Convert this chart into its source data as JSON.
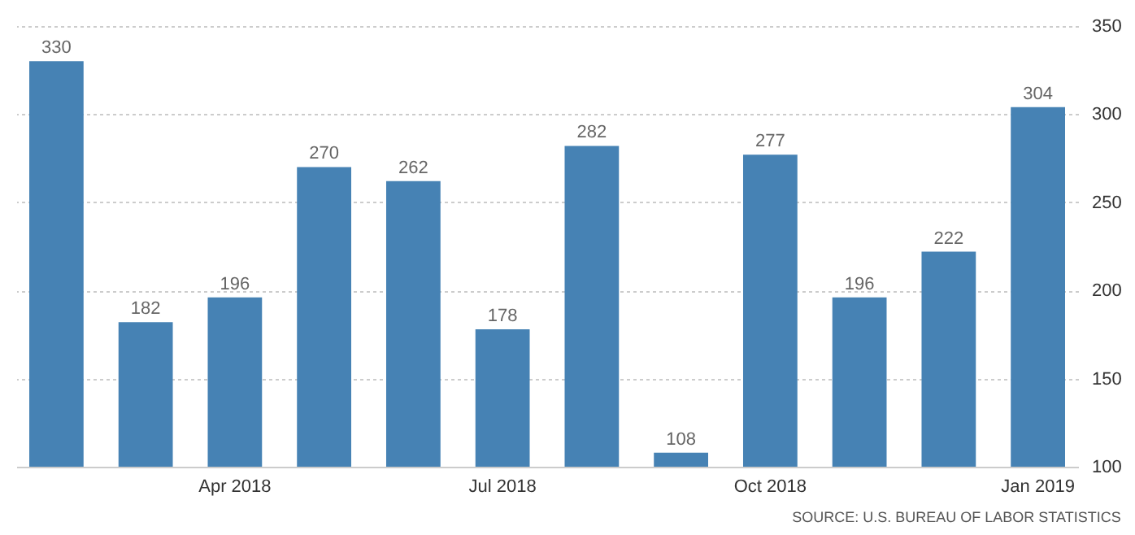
{
  "chart_data": {
    "type": "bar",
    "categories": [
      null,
      null,
      "Apr 2018",
      null,
      null,
      "Jul 2018",
      null,
      null,
      "Oct 2018",
      null,
      null,
      "Jan 2019"
    ],
    "values": [
      330,
      182,
      196,
      270,
      262,
      178,
      282,
      108,
      277,
      196,
      222,
      304
    ],
    "color": "#4682b4",
    "ylim": [
      100,
      350
    ],
    "yticks": [
      100,
      150,
      200,
      250,
      300,
      350
    ],
    "grid": "y",
    "data_labels": true,
    "annotations": [
      "SOURCE: U.S. BUREAU OF LABOR STATISTICS"
    ]
  }
}
